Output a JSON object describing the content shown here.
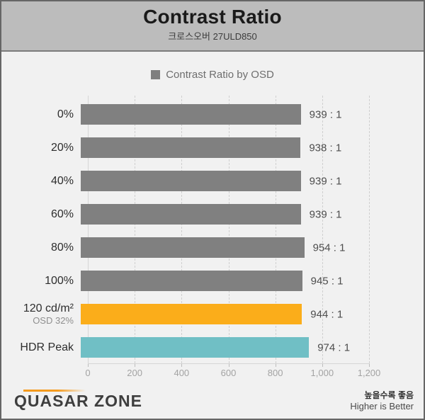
{
  "header": {
    "title": "Contrast Ratio",
    "subtitle": "크로스오버 27ULD850"
  },
  "legend": {
    "label": "Contrast Ratio by OSD",
    "swatch_color": "#7f7f7f"
  },
  "chart_data": {
    "type": "bar",
    "orientation": "horizontal",
    "title": "Contrast Ratio",
    "subtitle": "크로스오버 27ULD850",
    "legend": [
      "Contrast Ratio by OSD"
    ],
    "legend_position": "top-center",
    "grid": "vertical-dashed",
    "xlim": [
      0,
      1200
    ],
    "x_ticks": [
      0,
      200,
      400,
      600,
      800,
      1000,
      1200
    ],
    "x_tick_labels": [
      "0",
      "200",
      "400",
      "600",
      "800",
      "1,000",
      "1,200"
    ],
    "rows": [
      {
        "category": "0%",
        "sublabel": "",
        "value": 939,
        "value_label": "939 : 1",
        "color": "#808080"
      },
      {
        "category": "20%",
        "sublabel": "",
        "value": 938,
        "value_label": "938 : 1",
        "color": "#808080"
      },
      {
        "category": "40%",
        "sublabel": "",
        "value": 939,
        "value_label": "939 : 1",
        "color": "#808080"
      },
      {
        "category": "60%",
        "sublabel": "",
        "value": 939,
        "value_label": "939 : 1",
        "color": "#808080"
      },
      {
        "category": "80%",
        "sublabel": "",
        "value": 954,
        "value_label": "954 : 1",
        "color": "#808080"
      },
      {
        "category": "100%",
        "sublabel": "",
        "value": 945,
        "value_label": "945 : 1",
        "color": "#808080"
      },
      {
        "category": "120 cd/m²",
        "sublabel": "OSD 32%",
        "value": 944,
        "value_label": "944 : 1",
        "color": "#FBAD1A"
      },
      {
        "category": "HDR Peak",
        "sublabel": "",
        "value": 974,
        "value_label": "974 : 1",
        "color": "#70BFC5"
      }
    ]
  },
  "footer": {
    "logo_text": "QUASAR ZONE",
    "note_korean": "높을수록 좋음",
    "note_english": "Higher is Better",
    "logo_accent_color": "#F59B1E"
  },
  "colors": {
    "header_bg": "#bcbcbc",
    "body_bg": "#f1f1f1",
    "bar_default": "#808080",
    "bar_highlight_orange": "#FBAD1A",
    "bar_highlight_teal": "#70BFC5"
  }
}
